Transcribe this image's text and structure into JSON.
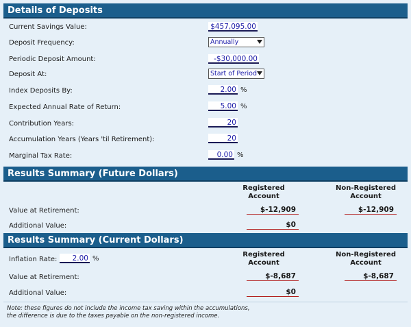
{
  "deposits": {
    "header": "Details of Deposits",
    "current_savings_label": "Current Savings Value:",
    "current_savings_value": "$457,095.00",
    "frequency_label": "Deposit Frequency:",
    "frequency_value": "Annually",
    "periodic_label": "Periodic Deposit Amount:",
    "periodic_value": "-$30,000.00",
    "deposit_at_label": "Deposit At:",
    "deposit_at_value": "Start of Period",
    "index_label": "Index Deposits By:",
    "index_value": "2.00",
    "index_unit": "%",
    "return_label": "Expected Annual Rate of Return:",
    "return_value": "5.00",
    "return_unit": "%",
    "contrib_label": "Contribution Years:",
    "contrib_value": "20",
    "accum_label": "Accumulation Years (Years 'til Retirement):",
    "accum_value": "20",
    "tax_label": "Marginal Tax Rate:",
    "tax_value": "0.00",
    "tax_unit": "%"
  },
  "future": {
    "header": "Results Summary (Future Dollars)",
    "col_registered": "Registered Account",
    "col_nonregistered": "Non-Registered Account",
    "value_label": "Value at Retirement:",
    "value_registered": "$-12,909",
    "value_nonregistered": "$-12,909",
    "additional_label": "Additional Value:",
    "additional_registered": "$0"
  },
  "current": {
    "header": "Results Summary (Current Dollars)",
    "inflation_label": "Inflation Rate:",
    "inflation_value": "2.00",
    "inflation_unit": "%",
    "col_registered": "Registered Account",
    "col_nonregistered": "Non-Registered Account",
    "value_label": "Value at Retirement:",
    "value_registered": "$-8,687",
    "value_nonregistered": "$-8,687",
    "additional_label": "Additional Value:",
    "additional_registered": "$0"
  },
  "note": {
    "line1": "Note: these figures do not include the income tax saving within the accumulations,",
    "line2": "the difference is due to the taxes payable on the non-registered income."
  }
}
